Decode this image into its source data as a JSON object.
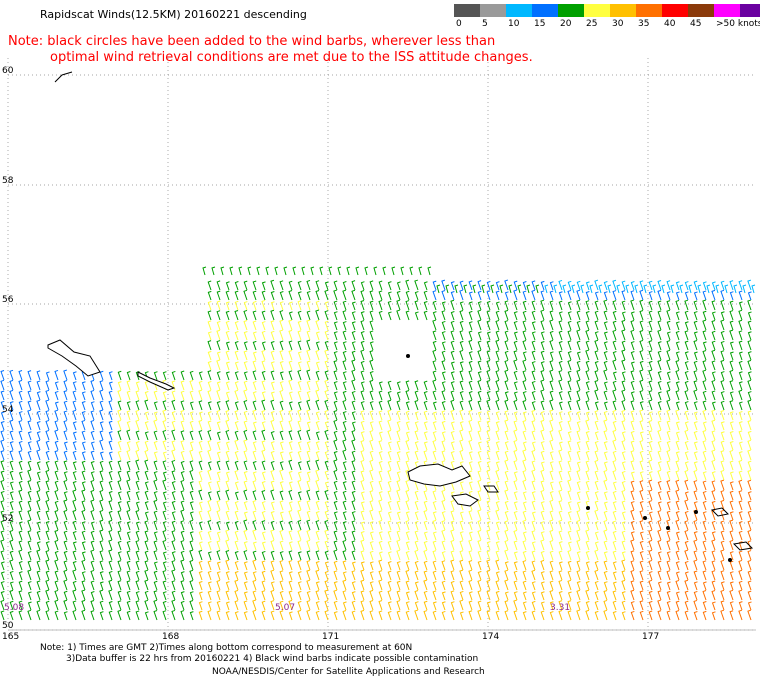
{
  "header": {
    "title": "Rapidscat Winds(12.5KM) 20160221 descending"
  },
  "note": {
    "line1": "Note: black circles have been added to the wind barbs, wherever less than",
    "line2": "optimal wind retrieval conditions are met due to the ISS attitude changes."
  },
  "legend": {
    "labels": [
      "0",
      "5",
      "10",
      "15",
      "20",
      "25",
      "30",
      "35",
      "40",
      "45",
      ">50 knots"
    ],
    "colors": [
      "#555555",
      "#9a9a9a",
      "#00b8ff",
      "#0070ff",
      "#00a000",
      "#ffff40",
      "#ffc000",
      "#ff7000",
      "#ff0000",
      "#8b3a0a",
      "#ff00ff",
      "#6a00a0"
    ]
  },
  "map": {
    "lat_labels": [
      "60",
      "58",
      "56",
      "54",
      "52",
      "50"
    ],
    "lon_labels": [
      "165",
      "168",
      "171",
      "174",
      "177"
    ],
    "time_labels": [
      "5.08",
      "5.07",
      "3.31"
    ]
  },
  "footer": {
    "line1": "Note: 1) Times are GMT 2)Times along bottom correspond to measurement at 60N",
    "line2": "3)Data buffer is 22 hrs from 20160221 4) Black wind barbs indicate possible contamination",
    "line3": "NOAA/NESDIS/Center for Satellite Applications and Research"
  }
}
